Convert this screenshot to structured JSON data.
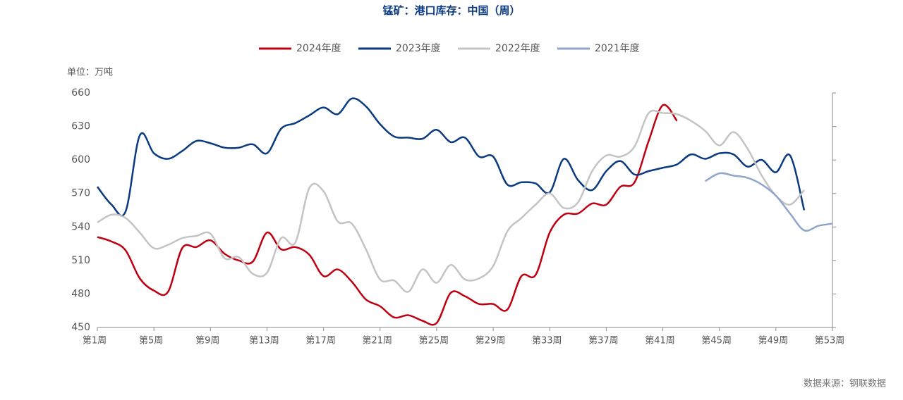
{
  "chart_data": {
    "type": "line",
    "title": "锰矿：港口库存：中国（周）",
    "unit_label": "单位：万吨",
    "source": "数据来源：钢联数据",
    "legend": "top",
    "categories": [
      "第1周",
      null,
      null,
      null,
      "第5周",
      null,
      null,
      null,
      "第9周",
      null,
      null,
      null,
      "第13周",
      null,
      null,
      null,
      "第17周",
      null,
      null,
      null,
      "第21周",
      null,
      null,
      null,
      "第25周",
      null,
      null,
      null,
      "第29周",
      null,
      null,
      null,
      "第33周",
      null,
      null,
      null,
      "第37周",
      null,
      null,
      null,
      "第41周",
      null,
      null,
      null,
      "第45周",
      null,
      null,
      null,
      "第49周",
      null,
      null,
      null,
      "第53周"
    ],
    "ylim": [
      450,
      660
    ],
    "yticks": [
      450,
      480,
      510,
      540,
      570,
      600,
      630,
      660
    ],
    "series": [
      {
        "name": "2024年度",
        "color": "#c00010",
        "values": [
          531,
          527,
          519,
          494,
          483,
          482,
          521,
          522,
          528,
          516,
          510,
          509,
          535,
          520,
          522,
          515,
          496,
          502,
          491,
          475,
          469,
          459,
          461,
          456,
          454,
          481,
          478,
          471,
          471,
          466,
          496,
          497,
          535,
          551,
          552,
          561,
          560,
          576,
          580,
          617,
          649,
          635,
          null,
          null,
          null,
          null,
          null,
          null,
          null,
          null,
          null,
          null,
          null
        ]
      },
      {
        "name": "2023年度",
        "color": "#0a3a80",
        "values": [
          576,
          560,
          554,
          622,
          606,
          601,
          608,
          617,
          615,
          611,
          611,
          614,
          606,
          628,
          633,
          640,
          647,
          641,
          655,
          648,
          632,
          621,
          620,
          619,
          627,
          616,
          620,
          603,
          603,
          578,
          580,
          579,
          571,
          601,
          582,
          573,
          590,
          599,
          587,
          590,
          593,
          596,
          605,
          601,
          606,
          605,
          594,
          600,
          589,
          604,
          555,
          null,
          null
        ]
      },
      {
        "name": "2022年度",
        "color": "#c4c4c4",
        "values": [
          544,
          551,
          548,
          535,
          521,
          524,
          530,
          532,
          534,
          512,
          513,
          498,
          499,
          530,
          526,
          575,
          572,
          545,
          543,
          520,
          493,
          492,
          482,
          502,
          490,
          506,
          493,
          494,
          505,
          536,
          548,
          560,
          570,
          557,
          562,
          590,
          604,
          603,
          612,
          642,
          642,
          641,
          635,
          626,
          613,
          625,
          610,
          586,
          568,
          560,
          573,
          null,
          null
        ]
      },
      {
        "name": "2021年度",
        "color": "#8fa5c9",
        "values": [
          null,
          null,
          null,
          null,
          null,
          null,
          null,
          null,
          null,
          null,
          null,
          null,
          null,
          null,
          null,
          null,
          null,
          null,
          null,
          null,
          null,
          null,
          null,
          null,
          null,
          null,
          null,
          null,
          null,
          null,
          null,
          null,
          null,
          null,
          null,
          null,
          null,
          null,
          null,
          null,
          null,
          null,
          null,
          581,
          588,
          586,
          584,
          578,
          568,
          552,
          537,
          541,
          543
        ]
      }
    ]
  }
}
